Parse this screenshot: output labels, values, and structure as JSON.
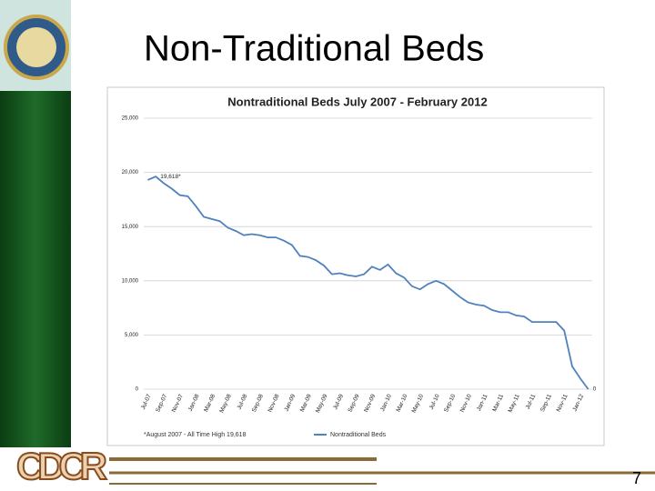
{
  "slide": {
    "title": "Non-Traditional Beds",
    "logo_text": "CDCR",
    "page_number": "7"
  },
  "chart_data": {
    "type": "line",
    "title": "Nontraditional Beds July 2007 - February  2012",
    "categories": [
      "Jul-07",
      null,
      "Sep-07",
      null,
      "Nov-07",
      null,
      "Jan-08",
      null,
      "Mar-08",
      null,
      "May-08",
      null,
      "Jul-08",
      null,
      "Sep-08",
      null,
      "Nov-08",
      null,
      "Jan-09",
      null,
      "Mar-09",
      null,
      "May-09",
      null,
      "Jul-09",
      null,
      "Sep-09",
      null,
      "Nov-09",
      null,
      "Jan-10",
      null,
      "Mar-10",
      null,
      "May-10",
      null,
      "Jul-10",
      null,
      "Sep-10",
      null,
      "Nov-10",
      null,
      "Jan-11",
      null,
      "Mar-11",
      null,
      "May-11",
      null,
      "Jul-11",
      null,
      "Sep-11",
      null,
      "Nov-11",
      null,
      "Jan-12",
      null
    ],
    "series": [
      {
        "name": "Nontraditional Beds",
        "color": "#4f81bd",
        "values": [
          19300,
          19618,
          19000,
          18500,
          17900,
          17800,
          16900,
          15900,
          15700,
          15500,
          14900,
          14600,
          14200,
          14300,
          14200,
          14000,
          14000,
          13700,
          13300,
          12300,
          12200,
          11900,
          11400,
          10600,
          10700,
          10500,
          10400,
          10600,
          11300,
          11000,
          11500,
          10700,
          10300,
          9500,
          9200,
          9700,
          10000,
          9700,
          9100,
          8500,
          8000,
          7800,
          7700,
          7300,
          7100,
          7100,
          6800,
          6700,
          6200,
          6200,
          6200,
          6200,
          5400,
          2100,
          1000,
          0
        ],
        "value_labels": [
          null,
          "19,618*",
          null,
          null,
          null,
          null,
          null,
          null,
          null,
          null,
          null,
          null,
          null,
          null,
          null,
          null,
          null,
          null,
          null,
          null,
          null,
          null,
          null,
          null,
          null,
          null,
          null,
          null,
          null,
          null,
          null,
          null,
          null,
          null,
          null,
          null,
          null,
          null,
          null,
          null,
          null,
          null,
          null,
          null,
          null,
          null,
          null,
          null,
          null,
          null,
          null,
          null,
          null,
          null,
          null,
          "0"
        ]
      }
    ],
    "ylim": [
      0,
      25000
    ],
    "yticks": [
      0,
      {
        "value": 5000,
        "label": "5,000"
      },
      {
        "value": 10000,
        "label": "10,000"
      },
      {
        "value": 15000,
        "label": "15,000"
      },
      {
        "value": 20000,
        "label": "20,000"
      },
      {
        "value": 25000,
        "label": "25,000"
      }
    ],
    "grid": true,
    "legend": "bottom",
    "annotation": "*August 2007 - All Time High 19,618"
  }
}
